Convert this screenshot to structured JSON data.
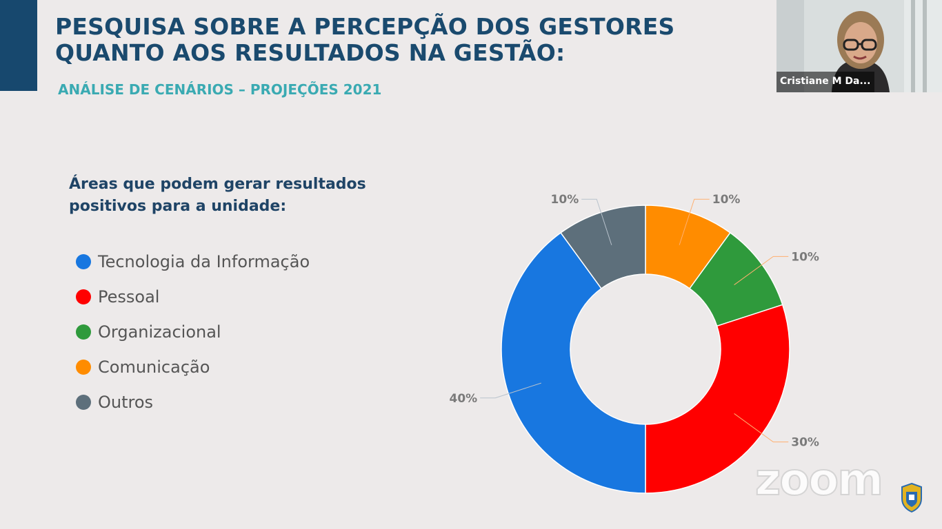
{
  "slide": {
    "title": "PESQUISA SOBRE A PERCEPÇÃO DOS GESTORES\nQUANTO AOS RESULTADOS NA GESTÃO:",
    "subtitle": "ANÁLISE DE CENÁRIOS – PROJEÇÕES 2021",
    "legend_heading": "Áreas que podem gerar resultados positivos para a unidade:",
    "legend": [
      {
        "label": "Tecnologia da Informação",
        "color": "#1877e0"
      },
      {
        "label": "Pessoal",
        "color": "#ff0000"
      },
      {
        "label": "Organizacional",
        "color": "#2f9a3c"
      },
      {
        "label": "Comunicação",
        "color": "#ff8c00"
      },
      {
        "label": "Outros",
        "color": "#5d6f7b"
      }
    ]
  },
  "chart_data": {
    "type": "pie",
    "variant": "donut",
    "categories": [
      "Comunicação",
      "Organizacional",
      "Pessoal",
      "Tecnologia da Informação",
      "Outros"
    ],
    "values": [
      10,
      10,
      30,
      40,
      10
    ],
    "labels": [
      "10%",
      "10%",
      "30%",
      "40%",
      "10%"
    ],
    "colors": [
      "#ff8c00",
      "#2f9a3c",
      "#ff0000",
      "#1877e0",
      "#5d6f7b"
    ]
  },
  "video": {
    "participant_name": "Cristiane M Da..."
  },
  "watermark": {
    "text": "zoom"
  },
  "crest_icon": "municipal-crest-icon"
}
